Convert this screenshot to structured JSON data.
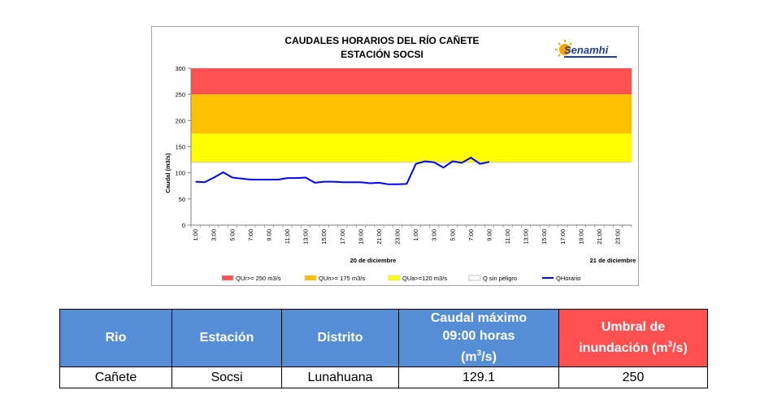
{
  "chart_data": {
    "type": "line",
    "title": "CAUDALES HORARIOS DEL RÍO CAÑETE",
    "subtitle": "ESTACIÓN SOCSI",
    "logo_text": "Senamhi",
    "ylabel": "Caudal (m3/s)",
    "ylim": [
      0,
      300
    ],
    "yticks": [
      "0",
      "50",
      "100",
      "150",
      "200",
      "250",
      "300"
    ],
    "xticks": [
      "1:00",
      "3:00",
      "5:00",
      "7:00",
      "9:00",
      "11:00",
      "13:00",
      "15:00",
      "17:00",
      "19:00",
      "21:00",
      "23:00",
      "1:00",
      "3:00",
      "5:00",
      "7:00",
      "9:00",
      "11:00",
      "13:00",
      "15:00",
      "17:00",
      "19:00",
      "21:00",
      "23:00"
    ],
    "date_labels": [
      "20 de diciembre",
      "21 de diciembre"
    ],
    "thresholds": [
      {
        "name": "QUr>= 250 m3/s",
        "from": 250,
        "to": 300,
        "color": "#ff5050"
      },
      {
        "name": "QUn>= 175 m3/s",
        "from": 175,
        "to": 250,
        "color": "#ffc000"
      },
      {
        "name": "QUa>=120 m3/s",
        "from": 120,
        "to": 175,
        "color": "#ffff00"
      },
      {
        "name": "Q sin peligro",
        "from": 0,
        "to": 120,
        "color": "#ffffff"
      }
    ],
    "series": [
      {
        "name": "QHorario",
        "color": "#0000ff",
        "x": [
          1,
          2,
          3,
          4,
          5,
          6,
          7,
          8,
          9,
          10,
          11,
          12,
          13,
          14,
          15,
          16,
          17,
          18,
          19,
          20,
          21,
          22,
          23,
          24,
          25,
          26,
          27,
          28,
          29,
          30,
          31,
          32,
          33
        ],
        "values": [
          83,
          82,
          91,
          101,
          91,
          89,
          87,
          87,
          87,
          87,
          90,
          90,
          91,
          81,
          83,
          83,
          82,
          82,
          82,
          80,
          81,
          78,
          78,
          79,
          117,
          122,
          120,
          110,
          122,
          119,
          129,
          117,
          121
        ]
      }
    ]
  },
  "table": {
    "headers": {
      "rio": "Rio",
      "estacion": "Estación",
      "distrito": "Distrito",
      "caudal_line1": "Caudal máximo",
      "caudal_line2": "09:00 horas",
      "caudal_line3_pre": "(m",
      "caudal_line3_sup": "3",
      "caudal_line3_post": "/s)",
      "umbral_line1": "Umbral de",
      "umbral_line2_pre": "inundación (m",
      "umbral_line2_sup": "3",
      "umbral_line2_post": "/s)"
    },
    "row": {
      "rio": "Cañete",
      "estacion": "Socsi",
      "distrito": "Lunahuana",
      "caudal": "129.1",
      "umbral": "250"
    },
    "colors": {
      "header_blue": "#558ed5",
      "header_red": "#ff4f4f"
    }
  }
}
